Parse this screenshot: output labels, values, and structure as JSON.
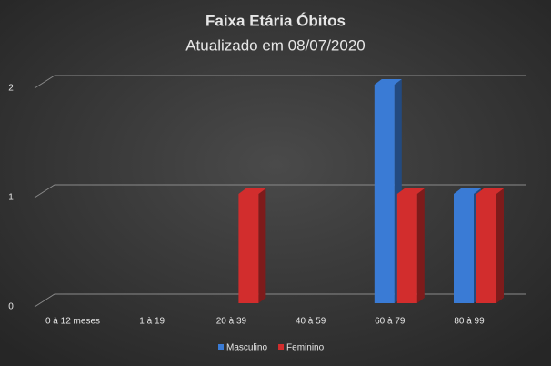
{
  "chart_data": {
    "type": "bar",
    "title": "Faixa  Etária  Óbitos",
    "subtitle": "Atualizado  em  08/07/2020",
    "categories": [
      "0 à 12 meses",
      "1 à 19",
      "20 à 39",
      "40 à 59",
      "60 à 79",
      "80 à 99"
    ],
    "series": [
      {
        "name": "Masculino",
        "color": "#3a7bd5",
        "values": [
          0,
          0,
          0,
          0,
          2,
          1
        ]
      },
      {
        "name": "Feminino",
        "color": "#d22d2d",
        "values": [
          0,
          0,
          1,
          0,
          1,
          1
        ]
      }
    ],
    "ylim": [
      0,
      2
    ],
    "yticks": [
      0,
      1,
      2
    ],
    "grid": true,
    "legend": "bottom"
  }
}
